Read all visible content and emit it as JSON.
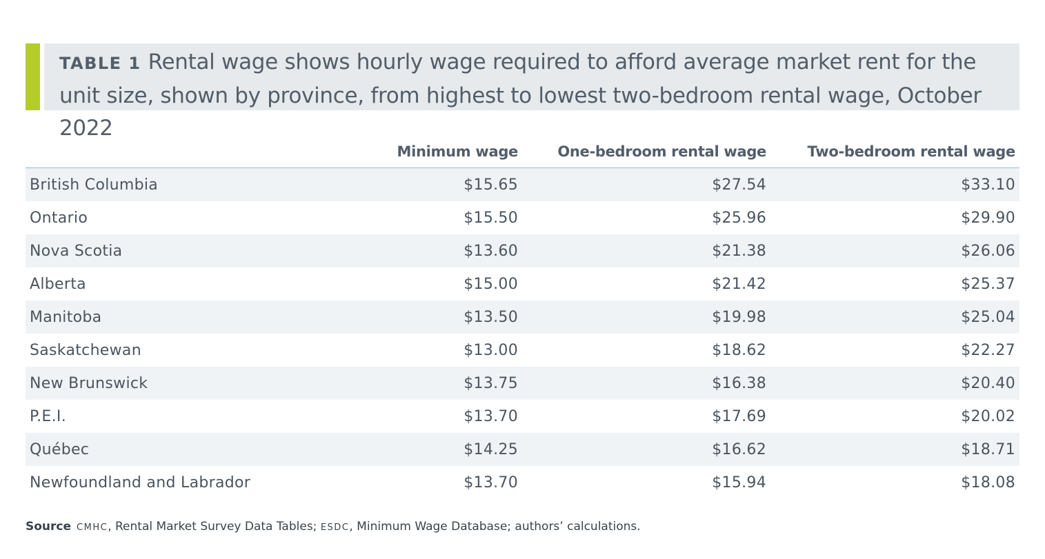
{
  "title": {
    "label": "TABLE 1",
    "text": "Rental wage shows hourly wage required to afford average market rent for the unit size, shown by province, from highest to lowest two-bedroom rental wage, October 2022"
  },
  "table": {
    "headers": [
      "",
      "Minimum wage",
      "One-bedroom rental wage",
      "Two-bedroom rental wage"
    ],
    "rows": [
      [
        "British Columbia",
        "$15.65",
        "$27.54",
        "$33.10"
      ],
      [
        "Ontario",
        "$15.50",
        "$25.96",
        "$29.90"
      ],
      [
        "Nova Scotia",
        "$13.60",
        "$21.38",
        "$26.06"
      ],
      [
        "Alberta",
        "$15.00",
        "$21.42",
        "$25.37"
      ],
      [
        "Manitoba",
        "$13.50",
        "$19.98",
        "$25.04"
      ],
      [
        "Saskatchewan",
        "$13.00",
        "$18.62",
        "$22.27"
      ],
      [
        "New Brunswick",
        "$13.75",
        "$16.38",
        "$20.40"
      ],
      [
        "P.E.I.",
        "$13.70",
        "$17.69",
        "$20.02"
      ],
      [
        "Québec",
        "$14.25",
        "$16.62",
        "$18.71"
      ],
      [
        "Newfoundland and Labrador",
        "$13.70",
        "$15.94",
        "$18.08"
      ]
    ]
  },
  "source": {
    "label": "Source",
    "org1": "CMHC",
    "text1": ", Rental Market Survey Data Tables; ",
    "org2": "ESDC",
    "text2": ", Minimum Wage Database; authors’ calculations."
  },
  "colors": {
    "accent": "#b5cd2a",
    "title_bg": "#e6eaed",
    "header_rule": "#7dbfd6",
    "stripe": "#f0f3f5"
  }
}
